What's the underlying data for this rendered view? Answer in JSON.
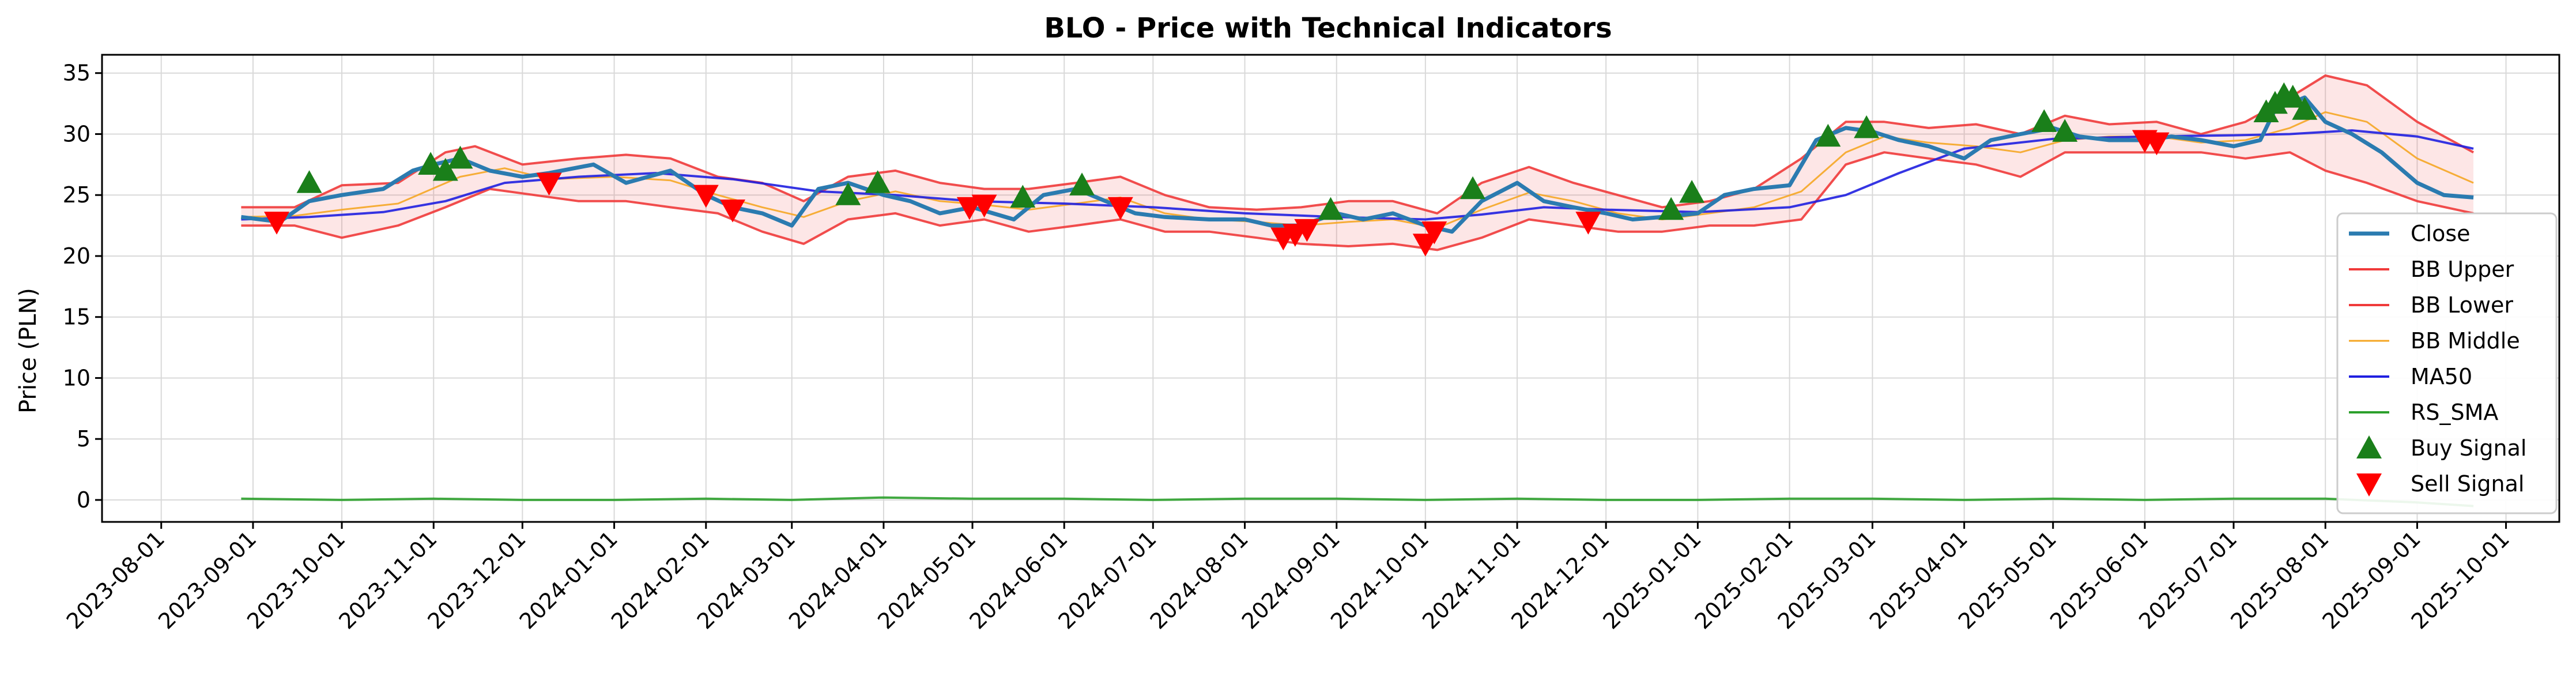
{
  "chart_data": {
    "type": "line",
    "title": "BLO - Price with Technical Indicators",
    "xlabel": "",
    "ylabel": "Price (PLN)",
    "ylim": [
      -1.8,
      36.5
    ],
    "yticks": [
      0,
      5,
      10,
      15,
      20,
      25,
      30,
      35
    ],
    "xticks": [
      "2023-08-01",
      "2023-09-01",
      "2023-10-01",
      "2023-11-01",
      "2023-12-01",
      "2024-01-01",
      "2024-02-01",
      "2024-03-01",
      "2024-04-01",
      "2024-05-01",
      "2024-06-01",
      "2024-07-01",
      "2024-08-01",
      "2024-09-01",
      "2024-10-01",
      "2024-11-01",
      "2024-12-01",
      "2025-01-01",
      "2025-02-01",
      "2025-03-01",
      "2025-04-01",
      "2025-05-01",
      "2025-06-01",
      "2025-07-01",
      "2025-08-01",
      "2025-09-01",
      "2025-10-01"
    ],
    "xlim": [
      "2023-07-12",
      "2025-10-19"
    ],
    "grid": true,
    "legend_position": "right",
    "series": [
      {
        "name": "Close",
        "color": "#2b7bb0",
        "width": 7,
        "x": [
          "2023-08-28",
          "2023-09-10",
          "2023-09-20",
          "2023-10-01",
          "2023-10-15",
          "2023-10-25",
          "2023-11-01",
          "2023-11-10",
          "2023-11-20",
          "2023-12-01",
          "2023-12-10",
          "2023-12-25",
          "2024-01-05",
          "2024-01-20",
          "2024-02-01",
          "2024-02-10",
          "2024-02-20",
          "2024-03-01",
          "2024-03-10",
          "2024-03-20",
          "2024-04-01",
          "2024-04-10",
          "2024-04-20",
          "2024-05-01",
          "2024-05-15",
          "2024-05-25",
          "2024-06-05",
          "2024-06-15",
          "2024-06-25",
          "2024-07-05",
          "2024-07-20",
          "2024-08-01",
          "2024-08-10",
          "2024-08-20",
          "2024-09-01",
          "2024-09-10",
          "2024-09-20",
          "2024-10-01",
          "2024-10-10",
          "2024-10-20",
          "2024-11-01",
          "2024-11-10",
          "2024-11-20",
          "2024-12-01",
          "2024-12-10",
          "2024-12-20",
          "2025-01-01",
          "2025-01-10",
          "2025-01-20",
          "2025-02-01",
          "2025-02-10",
          "2025-02-20",
          "2025-03-01",
          "2025-03-10",
          "2025-03-20",
          "2025-04-01",
          "2025-04-10",
          "2025-04-20",
          "2025-05-01",
          "2025-05-10",
          "2025-05-20",
          "2025-06-01",
          "2025-06-10",
          "2025-06-20",
          "2025-07-01",
          "2025-07-10",
          "2025-07-15",
          "2025-07-25",
          "2025-08-01",
          "2025-08-10",
          "2025-08-20",
          "2025-09-01",
          "2025-09-10",
          "2025-09-20"
        ],
        "y": [
          23.2,
          22.8,
          24.5,
          25.0,
          25.5,
          27.0,
          27.5,
          28.0,
          27.0,
          26.5,
          26.8,
          27.5,
          26.0,
          27.0,
          25.0,
          24.0,
          23.5,
          22.5,
          25.5,
          26.0,
          25.0,
          24.5,
          23.5,
          24.0,
          23.0,
          25.0,
          25.5,
          24.5,
          23.5,
          23.2,
          23.0,
          23.0,
          22.5,
          22.5,
          23.5,
          23.0,
          23.5,
          22.5,
          22.0,
          24.5,
          26.0,
          24.5,
          24.0,
          23.5,
          23.0,
          23.2,
          23.5,
          25.0,
          25.5,
          25.8,
          29.5,
          30.5,
          30.2,
          29.5,
          29.0,
          28.0,
          29.5,
          30.0,
          30.5,
          29.8,
          29.5,
          29.5,
          29.8,
          29.5,
          29.0,
          29.5,
          32.0,
          33.0,
          31.0,
          30.0,
          28.5,
          26.0,
          25.0,
          24.8
        ]
      },
      {
        "name": "BB Upper",
        "color": "#f03a3a",
        "width": 4,
        "x": [
          "2023-08-28",
          "2023-09-15",
          "2023-10-01",
          "2023-10-20",
          "2023-11-05",
          "2023-11-15",
          "2023-12-01",
          "2023-12-20",
          "2024-01-05",
          "2024-01-20",
          "2024-02-05",
          "2024-02-20",
          "2024-03-05",
          "2024-03-20",
          "2024-04-05",
          "2024-04-20",
          "2024-05-05",
          "2024-05-20",
          "2024-06-05",
          "2024-06-20",
          "2024-07-05",
          "2024-07-20",
          "2024-08-05",
          "2024-08-20",
          "2024-09-05",
          "2024-09-20",
          "2024-10-05",
          "2024-10-20",
          "2024-11-05",
          "2024-11-20",
          "2024-12-05",
          "2024-12-20",
          "2025-01-05",
          "2025-01-20",
          "2025-02-05",
          "2025-02-20",
          "2025-03-05",
          "2025-03-20",
          "2025-04-05",
          "2025-04-20",
          "2025-05-05",
          "2025-05-20",
          "2025-06-05",
          "2025-06-20",
          "2025-07-05",
          "2025-07-20",
          "2025-08-01",
          "2025-08-15",
          "2025-09-01",
          "2025-09-20"
        ],
        "y": [
          24.0,
          24.0,
          25.8,
          26.0,
          28.5,
          29.0,
          27.5,
          28.0,
          28.3,
          28.0,
          26.5,
          26.0,
          24.5,
          26.5,
          27.0,
          26.0,
          25.5,
          25.5,
          26.0,
          26.5,
          25.0,
          24.0,
          23.8,
          24.0,
          24.5,
          24.5,
          23.5,
          26.0,
          27.3,
          26.0,
          25.0,
          24.0,
          24.5,
          25.5,
          28.0,
          31.0,
          31.0,
          30.5,
          30.8,
          30.0,
          31.5,
          30.8,
          31.0,
          30.0,
          31.0,
          33.0,
          34.8,
          34.0,
          31.0,
          28.5
        ]
      },
      {
        "name": "BB Lower",
        "color": "#f03a3a",
        "width": 4,
        "x": [
          "2023-08-28",
          "2023-09-15",
          "2023-10-01",
          "2023-10-20",
          "2023-11-05",
          "2023-11-20",
          "2023-12-05",
          "2023-12-20",
          "2024-01-05",
          "2024-01-20",
          "2024-02-05",
          "2024-02-20",
          "2024-03-05",
          "2024-03-20",
          "2024-04-05",
          "2024-04-20",
          "2024-05-05",
          "2024-05-20",
          "2024-06-05",
          "2024-06-20",
          "2024-07-05",
          "2024-07-20",
          "2024-08-05",
          "2024-08-20",
          "2024-09-05",
          "2024-09-20",
          "2024-10-05",
          "2024-10-20",
          "2024-11-05",
          "2024-11-20",
          "2024-12-05",
          "2024-12-20",
          "2025-01-05",
          "2025-01-20",
          "2025-02-05",
          "2025-02-20",
          "2025-03-05",
          "2025-03-20",
          "2025-04-05",
          "2025-04-20",
          "2025-05-05",
          "2025-05-20",
          "2025-06-05",
          "2025-06-20",
          "2025-07-05",
          "2025-07-20",
          "2025-08-01",
          "2025-08-15",
          "2025-09-01",
          "2025-09-20"
        ],
        "y": [
          22.5,
          22.5,
          21.5,
          22.5,
          24.0,
          25.5,
          25.0,
          24.5,
          24.5,
          24.0,
          23.5,
          22.0,
          21.0,
          23.0,
          23.5,
          22.5,
          23.0,
          22.0,
          22.5,
          23.0,
          22.0,
          22.0,
          21.5,
          21.0,
          20.8,
          21.0,
          20.5,
          21.5,
          23.0,
          22.5,
          22.0,
          22.0,
          22.5,
          22.5,
          23.0,
          27.5,
          28.5,
          28.0,
          27.5,
          26.5,
          28.5,
          28.5,
          28.5,
          28.5,
          28.0,
          28.5,
          27.0,
          26.0,
          24.5,
          23.5
        ]
      },
      {
        "name": "BB Middle",
        "color": "#f5a623",
        "width": 3,
        "x": [
          "2023-08-28",
          "2023-09-15",
          "2023-10-01",
          "2023-10-20",
          "2023-11-10",
          "2023-11-25",
          "2023-12-10",
          "2024-01-01",
          "2024-01-20",
          "2024-02-05",
          "2024-02-20",
          "2024-03-05",
          "2024-03-20",
          "2024-04-05",
          "2024-04-20",
          "2024-05-05",
          "2024-05-20",
          "2024-06-05",
          "2024-06-20",
          "2024-07-05",
          "2024-07-20",
          "2024-08-05",
          "2024-08-20",
          "2024-09-05",
          "2024-09-20",
          "2024-10-05",
          "2024-10-20",
          "2024-11-05",
          "2024-11-20",
          "2024-12-05",
          "2024-12-20",
          "2025-01-05",
          "2025-01-20",
          "2025-02-05",
          "2025-02-20",
          "2025-03-05",
          "2025-03-20",
          "2025-04-05",
          "2025-04-20",
          "2025-05-05",
          "2025-05-20",
          "2025-06-05",
          "2025-06-20",
          "2025-07-05",
          "2025-07-20",
          "2025-08-01",
          "2025-08-15",
          "2025-09-01",
          "2025-09-20"
        ],
        "y": [
          23.2,
          23.3,
          23.8,
          24.3,
          26.5,
          27.2,
          26.3,
          26.5,
          26.2,
          25.0,
          24.0,
          23.2,
          24.5,
          25.3,
          24.5,
          24.2,
          23.8,
          24.3,
          24.8,
          23.5,
          23.0,
          22.8,
          22.5,
          22.8,
          23.0,
          22.3,
          23.8,
          25.2,
          24.5,
          23.5,
          23.0,
          23.5,
          24.0,
          25.3,
          28.5,
          29.8,
          29.3,
          29.0,
          28.5,
          29.5,
          29.8,
          29.8,
          29.3,
          29.5,
          30.5,
          31.8,
          31.0,
          28.0,
          26.0
        ]
      },
      {
        "name": "MA50",
        "color": "#1f1fe0",
        "width": 4,
        "x": [
          "2023-08-28",
          "2023-09-20",
          "2023-10-15",
          "2023-11-05",
          "2023-11-25",
          "2023-12-20",
          "2024-01-15",
          "2024-02-10",
          "2024-03-10",
          "2024-04-05",
          "2024-05-01",
          "2024-06-01",
          "2024-07-01",
          "2024-08-01",
          "2024-09-01",
          "2024-10-01",
          "2024-10-20",
          "2024-11-10",
          "2024-12-01",
          "2025-01-01",
          "2025-02-01",
          "2025-02-20",
          "2025-03-10",
          "2025-04-01",
          "2025-05-01",
          "2025-06-01",
          "2025-07-01",
          "2025-07-20",
          "2025-08-10",
          "2025-09-01",
          "2025-09-20"
        ],
        "y": [
          23.0,
          23.2,
          23.6,
          24.5,
          26.0,
          26.5,
          26.8,
          26.3,
          25.3,
          25.0,
          24.5,
          24.3,
          24.0,
          23.5,
          23.2,
          23.0,
          23.4,
          24.0,
          23.8,
          23.6,
          24.0,
          25.0,
          26.8,
          28.8,
          29.6,
          29.8,
          29.9,
          30.0,
          30.3,
          29.8,
          28.8
        ]
      },
      {
        "name": "RS_SMA",
        "color": "#2ca02c",
        "width": 4,
        "x": [
          "2023-08-28",
          "2023-10-01",
          "2023-11-01",
          "2023-12-01",
          "2024-01-01",
          "2024-02-01",
          "2024-03-01",
          "2024-04-01",
          "2024-05-01",
          "2024-06-01",
          "2024-07-01",
          "2024-08-01",
          "2024-09-01",
          "2024-10-01",
          "2024-11-01",
          "2024-12-01",
          "2025-01-01",
          "2025-02-01",
          "2025-03-01",
          "2025-04-01",
          "2025-05-01",
          "2025-06-01",
          "2025-07-01",
          "2025-08-01",
          "2025-09-01",
          "2025-09-20"
        ],
        "y": [
          0.1,
          0.0,
          0.1,
          0.0,
          0.0,
          0.1,
          0.0,
          0.2,
          0.1,
          0.1,
          0.0,
          0.1,
          0.1,
          0.0,
          0.1,
          0.0,
          0.0,
          0.1,
          0.1,
          0.0,
          0.1,
          0.0,
          0.1,
          0.1,
          -0.2,
          -0.5
        ]
      }
    ],
    "buy_signals": {
      "name": "Buy Signal",
      "color": "#1a7f1a",
      "x": [
        "2023-09-20",
        "2023-10-31",
        "2023-11-05",
        "2023-11-10",
        "2024-03-20",
        "2024-03-30",
        "2024-05-18",
        "2024-06-07",
        "2024-08-30",
        "2024-10-17",
        "2024-12-23",
        "2024-12-30",
        "2025-02-14",
        "2025-02-27",
        "2025-04-28",
        "2025-05-05",
        "2025-07-12",
        "2025-07-15",
        "2025-07-18",
        "2025-07-21",
        "2025-07-25"
      ],
      "y": [
        26.0,
        27.5,
        27.0,
        28.0,
        25.0,
        26.0,
        24.8,
        25.8,
        23.8,
        25.5,
        23.8,
        25.2,
        29.8,
        30.5,
        31.0,
        30.2,
        31.8,
        32.5,
        33.2,
        33.0,
        32.0
      ]
    },
    "sell_signals": {
      "name": "Sell Signal",
      "color": "#ff0000",
      "x": [
        "2023-09-09",
        "2023-12-10",
        "2024-02-01",
        "2024-02-10",
        "2024-04-30",
        "2024-05-05",
        "2024-06-20",
        "2024-08-14",
        "2024-08-18",
        "2024-08-22",
        "2024-10-01",
        "2024-10-04",
        "2024-11-25",
        "2025-06-01",
        "2025-06-05"
      ],
      "y": [
        22.8,
        26.0,
        25.0,
        23.8,
        24.0,
        24.2,
        24.0,
        21.5,
        21.8,
        22.2,
        21.0,
        22.0,
        22.8,
        29.5,
        29.3
      ]
    }
  }
}
